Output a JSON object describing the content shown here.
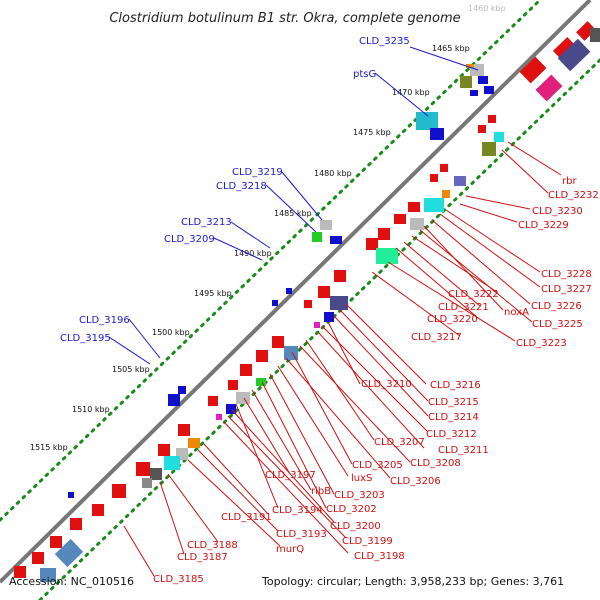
{
  "title": "Clostridium botulinum B1 str. Okra, complete genome",
  "footer": {
    "accession": "Accession: NC_010516",
    "summary": "Topology: circular; Length: 3,958,233 bp; Genes: 3,761"
  },
  "colors": {
    "backbone": "#777777",
    "dots": "#1a8a1a",
    "minus_strand_label": "#1a1ad0",
    "plus_strand_label": "#d01010"
  },
  "kbp_ticks": [
    "1460 kbp",
    "1465 kbp",
    "1470 kbp",
    "1475 kbp",
    "1480 kbp",
    "1485 kbp",
    "1490 kbp",
    "1495 kbp",
    "1500 kbp",
    "1505 kbp",
    "1510 kbp",
    "1515 kbp"
  ],
  "blue_labels": [
    "CLD_3235",
    "ptsG",
    "CLD_3219",
    "CLD_3218",
    "CLD_3213",
    "CLD_3209",
    "CLD_3196",
    "CLD_3195"
  ],
  "red_labels": [
    "rbr",
    "CLD_3232",
    "CLD_3230",
    "CLD_3229",
    "CLD_3228",
    "CLD_3227",
    "CLD_3226",
    "noxA",
    "CLD_3225",
    "CLD_3222",
    "CLD_3221",
    "CLD_3220",
    "CLD_3223",
    "CLD_3217",
    "CLD_3216",
    "CLD_3215",
    "CLD_3214",
    "CLD_3210",
    "CLD_3212",
    "CLD_3211",
    "CLD_3207",
    "CLD_3208",
    "CLD_3205",
    "CLD_3206",
    "luxS",
    "CLD_3203",
    "CLD_3202",
    "ribB",
    "CLD_3197",
    "CLD_3194",
    "CLD_3200",
    "CLD_3199",
    "CLD_3198",
    "CLD_3191",
    "CLD_3193",
    "murQ",
    "CLD_3188",
    "CLD_3187",
    "CLD_3185"
  ]
}
